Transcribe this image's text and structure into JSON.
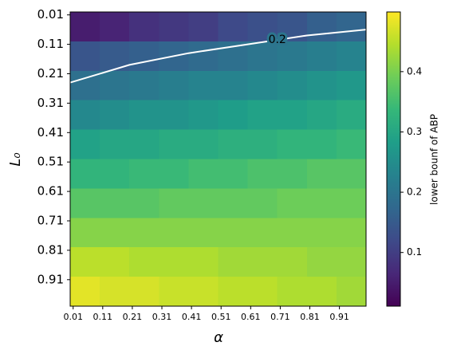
{
  "chart_data": {
    "type": "heatmap",
    "xlabel": "α",
    "ylabel": "L₀",
    "colorbar_label": "lower bounf of ABP",
    "colormap": "viridis",
    "y_inverted": true,
    "x": [
      0.05,
      0.15,
      0.25,
      0.35,
      0.45,
      0.55,
      0.65,
      0.75,
      0.85,
      0.95
    ],
    "y": [
      0.05,
      0.15,
      0.25,
      0.35,
      0.45,
      0.55,
      0.65,
      0.75,
      0.85,
      0.95
    ],
    "z": [
      [
        0.05,
        0.06,
        0.08,
        0.09,
        0.1,
        0.12,
        0.13,
        0.14,
        0.16,
        0.17
      ],
      [
        0.14,
        0.15,
        0.16,
        0.17,
        0.18,
        0.19,
        0.2,
        0.21,
        0.22,
        0.23
      ],
      [
        0.19,
        0.2,
        0.21,
        0.22,
        0.23,
        0.23,
        0.24,
        0.25,
        0.26,
        0.27
      ],
      [
        0.24,
        0.25,
        0.26,
        0.26,
        0.27,
        0.28,
        0.29,
        0.29,
        0.3,
        0.31
      ],
      [
        0.29,
        0.3,
        0.3,
        0.31,
        0.31,
        0.32,
        0.32,
        0.33,
        0.33,
        0.34
      ],
      [
        0.33,
        0.33,
        0.34,
        0.34,
        0.35,
        0.35,
        0.36,
        0.36,
        0.37,
        0.37
      ],
      [
        0.37,
        0.37,
        0.37,
        0.38,
        0.38,
        0.38,
        0.38,
        0.39,
        0.39,
        0.39
      ],
      [
        0.41,
        0.41,
        0.41,
        0.41,
        0.41,
        0.41,
        0.41,
        0.41,
        0.41,
        0.41
      ],
      [
        0.45,
        0.45,
        0.44,
        0.44,
        0.44,
        0.43,
        0.43,
        0.43,
        0.42,
        0.42
      ],
      [
        0.48,
        0.47,
        0.47,
        0.46,
        0.46,
        0.45,
        0.45,
        0.44,
        0.44,
        0.43
      ]
    ],
    "xlim": [
      0,
      1
    ],
    "ylim": [
      0,
      1
    ],
    "xticks": [
      0.01,
      0.11,
      0.21,
      0.31,
      0.41,
      0.51,
      0.61,
      0.71,
      0.81,
      0.91
    ],
    "yticks": [
      0.01,
      0.11,
      0.21,
      0.31,
      0.41,
      0.51,
      0.61,
      0.71,
      0.81,
      0.91
    ],
    "clim": [
      0.011,
      0.499
    ],
    "cticks": [
      0.1,
      0.2,
      0.3,
      0.4
    ],
    "contour": {
      "level": 0.2,
      "color": "#ffffff",
      "x": [
        0,
        0.2,
        0.4,
        0.6,
        0.8,
        1.0
      ],
      "y": [
        0.24,
        0.18,
        0.14,
        0.11,
        0.08,
        0.06
      ]
    }
  }
}
